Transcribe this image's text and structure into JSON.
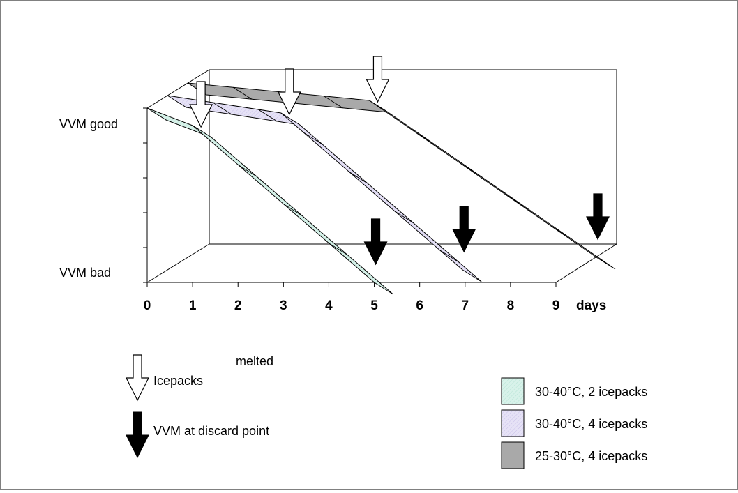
{
  "chart_data": {
    "type": "area",
    "title": "",
    "xlabel": "days",
    "ylabel": "",
    "x_ticks": [
      0,
      1,
      2,
      3,
      4,
      5,
      6,
      7,
      8,
      9
    ],
    "xlim": [
      0,
      9
    ],
    "y_ticks": [
      "VVM good",
      "VVM bad"
    ],
    "ylim": [
      "VVM bad",
      "VVM good"
    ],
    "grid": false,
    "legend_position": "bottom-right",
    "series": [
      {
        "name": "30-40°C, 2 icepacks",
        "color": "#d8f2ea",
        "points": [
          [
            0,
            1.0
          ],
          [
            1,
            0.9
          ],
          [
            5,
            0.0
          ]
        ],
        "icepacks_melted_day": 1,
        "vvm_discard_day": 5
      },
      {
        "name": "30-40°C, 4 icepacks",
        "color": "#e6e2f6",
        "points": [
          [
            0,
            1.0
          ],
          [
            2.5,
            0.9
          ],
          [
            6.5,
            0.0
          ]
        ],
        "icepacks_melted_day": 2.5,
        "vvm_discard_day": 6.5
      },
      {
        "name": "25-30°C, 4 icepacks",
        "color": "#a9a9a9",
        "points": [
          [
            0,
            1.0
          ],
          [
            4,
            0.9
          ],
          [
            9,
            0.0
          ]
        ],
        "icepacks_melted_day": 4,
        "vvm_discard_day": 9
      }
    ],
    "annotations": {
      "melted_text": "melted",
      "icepacks_text": "Icepacks",
      "discard_text": "VVM at discard point"
    }
  }
}
